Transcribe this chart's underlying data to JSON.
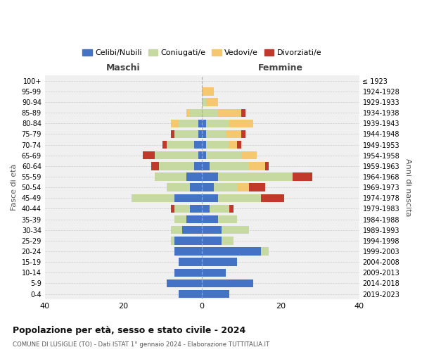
{
  "age_groups": [
    "100+",
    "95-99",
    "90-94",
    "85-89",
    "80-84",
    "75-79",
    "70-74",
    "65-69",
    "60-64",
    "55-59",
    "50-54",
    "45-49",
    "40-44",
    "35-39",
    "30-34",
    "25-29",
    "20-24",
    "15-19",
    "10-14",
    "5-9",
    "0-4"
  ],
  "birth_years": [
    "≤ 1923",
    "1924-1928",
    "1929-1933",
    "1934-1938",
    "1939-1943",
    "1944-1948",
    "1949-1953",
    "1954-1958",
    "1959-1963",
    "1964-1968",
    "1969-1973",
    "1974-1978",
    "1979-1983",
    "1984-1988",
    "1989-1993",
    "1994-1998",
    "1999-2003",
    "2004-2008",
    "2009-2013",
    "2014-2018",
    "2019-2023"
  ],
  "colors": {
    "celibi": "#4472C4",
    "coniugati": "#C5D9A0",
    "vedovi": "#F5C76E",
    "divorziati": "#C0392B"
  },
  "maschi": {
    "celibi": [
      0,
      0,
      0,
      0,
      1,
      1,
      2,
      1,
      2,
      4,
      3,
      7,
      3,
      4,
      5,
      7,
      7,
      6,
      7,
      9,
      6
    ],
    "coniugati": [
      0,
      0,
      0,
      3,
      5,
      6,
      7,
      11,
      9,
      8,
      6,
      11,
      4,
      3,
      3,
      1,
      0,
      0,
      0,
      0,
      0
    ],
    "vedovi": [
      0,
      0,
      0,
      1,
      2,
      0,
      0,
      0,
      0,
      0,
      0,
      0,
      0,
      0,
      0,
      0,
      0,
      0,
      0,
      0,
      0
    ],
    "divorziati": [
      0,
      0,
      0,
      0,
      0,
      1,
      1,
      3,
      2,
      0,
      0,
      0,
      1,
      0,
      0,
      0,
      0,
      0,
      0,
      0,
      0
    ]
  },
  "femmine": {
    "celibi": [
      0,
      0,
      0,
      0,
      1,
      1,
      1,
      1,
      2,
      4,
      3,
      4,
      2,
      4,
      5,
      5,
      15,
      9,
      6,
      13,
      7
    ],
    "coniugati": [
      0,
      0,
      1,
      4,
      6,
      5,
      6,
      9,
      10,
      19,
      6,
      11,
      5,
      5,
      7,
      3,
      2,
      0,
      0,
      0,
      0
    ],
    "vedovi": [
      0,
      3,
      3,
      6,
      6,
      4,
      2,
      4,
      4,
      0,
      3,
      0,
      0,
      0,
      0,
      0,
      0,
      0,
      0,
      0,
      0
    ],
    "divorziati": [
      0,
      0,
      0,
      1,
      0,
      1,
      1,
      0,
      1,
      5,
      4,
      6,
      1,
      0,
      0,
      0,
      0,
      0,
      0,
      0,
      0
    ]
  },
  "title": "Popolazione per età, sesso e stato civile - 2024",
  "subtitle": "COMUNE DI LUSIGLIÈ (TO) - Dati ISTAT 1° gennaio 2024 - Elaborazione TUTTITALIA.IT",
  "xlabel_left": "Maschi",
  "xlabel_right": "Femmine",
  "ylabel_left": "Fasce di età",
  "ylabel_right": "Anni di nascita",
  "xlim": 40,
  "legend_labels": [
    "Celibi/Nubili",
    "Coniugati/e",
    "Vedovi/e",
    "Divorziati/e"
  ],
  "background_color": "#ffffff"
}
